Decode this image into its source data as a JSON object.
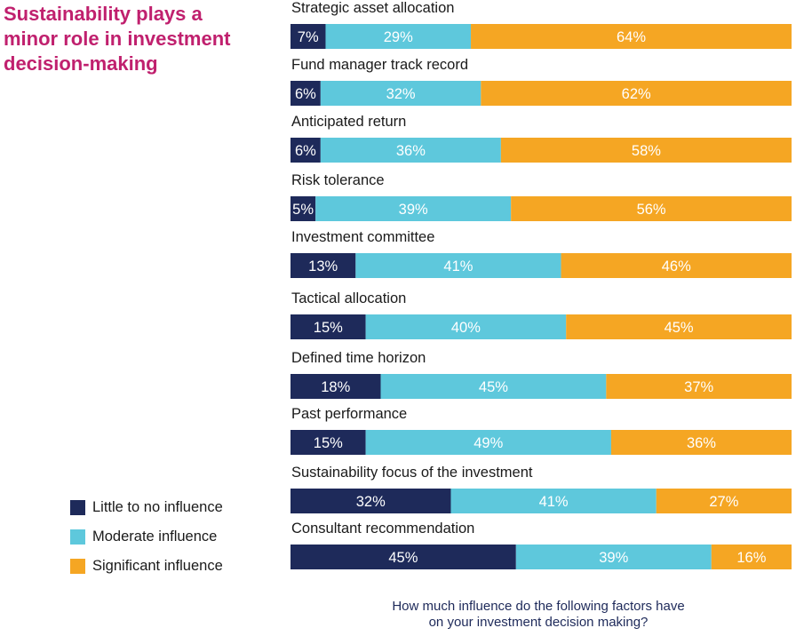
{
  "title": "Sustainability plays a\nminor role in investment\ndecision-making",
  "footnote": "How much influence do the following factors have\non your investment decision making?",
  "chart_data": {
    "type": "bar",
    "orientation": "horizontal",
    "stacked": true,
    "categories": [
      "Strategic asset allocation",
      "Fund manager track record",
      "Anticipated return",
      "Risk tolerance",
      "Investment committee",
      "Tactical allocation",
      "Defined time horizon",
      "Past performance",
      "Sustainability focus of the investment",
      "Consultant recommendation"
    ],
    "series": [
      {
        "name": "Little to no influence",
        "color": "#1e2a5a",
        "values": [
          7,
          6,
          6,
          5,
          13,
          15,
          18,
          15,
          32,
          45
        ]
      },
      {
        "name": "Moderate influence",
        "color": "#5ec8dc",
        "values": [
          29,
          32,
          36,
          39,
          41,
          40,
          45,
          49,
          41,
          39
        ]
      },
      {
        "name": "Significant influence",
        "color": "#f5a623",
        "values": [
          64,
          62,
          58,
          56,
          46,
          45,
          37,
          36,
          27,
          16
        ]
      }
    ],
    "value_suffix": "%",
    "xlim": [
      0,
      100
    ],
    "legend_position": "bottom-left",
    "grid": false
  }
}
